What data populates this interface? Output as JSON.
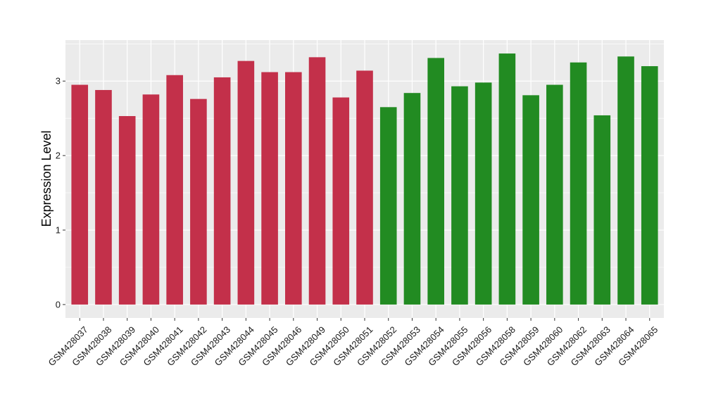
{
  "chart_data": {
    "type": "bar",
    "title": "",
    "xlabel": "",
    "ylabel": "Expression Level",
    "ylim": [
      -0.18,
      3.55
    ],
    "yticks": [
      0,
      1,
      2,
      3
    ],
    "grid": true,
    "background_color": "#EBEBEB",
    "grid_color": "#FFFFFF",
    "categories": [
      "GSM428037",
      "GSM428038",
      "GSM428039",
      "GSM428040",
      "GSM428041",
      "GSM428042",
      "GSM428043",
      "GSM428044",
      "GSM428045",
      "GSM428046",
      "GSM428049",
      "GSM428050",
      "GSM428051",
      "GSM428052",
      "GSM428053",
      "GSM428054",
      "GSM428055",
      "GSM428056",
      "GSM428058",
      "GSM428059",
      "GSM428060",
      "GSM428062",
      "GSM428063",
      "GSM428064",
      "GSM428065"
    ],
    "values": [
      2.95,
      2.88,
      2.53,
      2.82,
      3.08,
      2.76,
      3.05,
      3.27,
      3.12,
      3.12,
      3.32,
      2.78,
      3.14,
      2.65,
      2.84,
      3.31,
      2.93,
      2.98,
      3.37,
      2.81,
      2.95,
      3.25,
      2.54,
      3.33,
      3.2
    ],
    "bar_colors": [
      "#C3304A",
      "#C3304A",
      "#C3304A",
      "#C3304A",
      "#C3304A",
      "#C3304A",
      "#C3304A",
      "#C3304A",
      "#C3304A",
      "#C3304A",
      "#C3304A",
      "#C3304A",
      "#C3304A",
      "#228B22",
      "#228B22",
      "#228B22",
      "#228B22",
      "#228B22",
      "#228B22",
      "#228B22",
      "#228B22",
      "#228B22",
      "#228B22",
      "#228B22",
      "#228B22"
    ]
  }
}
